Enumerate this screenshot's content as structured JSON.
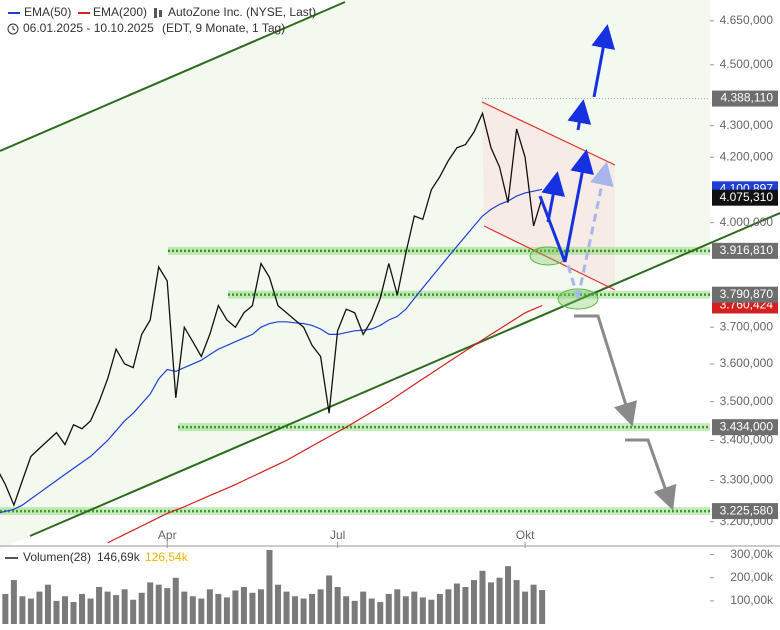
{
  "chart_data": [
    {
      "type": "line",
      "title": "AutoZone Inc. (NYSE, Last)",
      "subtitle": "06.01.2025 - 10.10.2025",
      "period_note": "(EDT, 9 Monate, 1 Tag)",
      "log_scale": true,
      "categories": [
        null,
        null,
        null,
        null,
        null,
        null,
        null,
        null,
        null,
        null,
        null,
        null,
        null,
        null,
        null,
        null,
        null,
        null,
        null,
        null,
        "Apr",
        null,
        null,
        null,
        null,
        null,
        null,
        null,
        null,
        null,
        null,
        null,
        null,
        null,
        null,
        null,
        null,
        null,
        null,
        null,
        "Jul",
        null,
        null,
        null,
        null,
        null,
        null,
        null,
        null,
        null,
        null,
        null,
        null,
        null,
        null,
        null,
        null,
        null,
        null,
        null,
        null,
        null,
        "Okt",
        null,
        null
      ],
      "series": [
        {
          "color": "#111111",
          "values": [
            3330,
            3290,
            3240,
            3300,
            3360,
            3380,
            3400,
            3420,
            3390,
            3440,
            3430,
            3450,
            3500,
            3560,
            3640,
            3600,
            3590,
            3680,
            3720,
            3870,
            3830,
            3510,
            3700,
            3660,
            3620,
            3680,
            3760,
            3720,
            3700,
            3740,
            3760,
            3880,
            3840,
            3760,
            3740,
            3720,
            3700,
            3650,
            3620,
            3470,
            3690,
            3750,
            3740,
            3680,
            3720,
            3780,
            3880,
            3790,
            3910,
            4020,
            4010,
            4100,
            4140,
            4190,
            4230,
            4240,
            4280,
            4340,
            4230,
            4170,
            4060,
            4290,
            4200,
            3990,
            4075.31
          ]
        },
        {
          "name": "EMA(50)",
          "color": "#1f3fd6",
          "values": [
            3220,
            3225,
            3230,
            3240,
            3255,
            3270,
            3285,
            3300,
            3315,
            3330,
            3345,
            3360,
            3380,
            3400,
            3425,
            3450,
            3470,
            3495,
            3520,
            3560,
            3585,
            3580,
            3590,
            3600,
            3610,
            3625,
            3640,
            3650,
            3660,
            3670,
            3680,
            3700,
            3710,
            3715,
            3715,
            3712,
            3710,
            3705,
            3695,
            3680,
            3680,
            3685,
            3690,
            3692,
            3695,
            3705,
            3720,
            3730,
            3750,
            3780,
            3810,
            3840,
            3870,
            3900,
            3930,
            3960,
            3990,
            4020,
            4040,
            4055,
            4065,
            4080,
            4090,
            4095,
            4100.897
          ]
        },
        {
          "name": "EMA(200)",
          "color": "#d42020",
          "values": [
            null,
            null,
            null,
            null,
            null,
            null,
            null,
            null,
            null,
            null,
            null,
            null,
            null,
            3150,
            3160,
            3170,
            3180,
            3190,
            3200,
            3210,
            3220,
            3228,
            3236,
            3245,
            3254,
            3263,
            3272,
            3281,
            3290,
            3300,
            3310,
            3320,
            3330,
            3340,
            3350,
            3362,
            3374,
            3386,
            3398,
            3410,
            3422,
            3434,
            3447,
            3460,
            3473,
            3486,
            3500,
            3515,
            3530,
            3545,
            3560,
            3575,
            3590,
            3605,
            3620,
            3635,
            3650,
            3665,
            3680,
            3695,
            3710,
            3725,
            3740,
            3750,
            3760.424
          ]
        }
      ],
      "ylim": [
        3145,
        4723
      ],
      "yticks": [
        {
          "value": 4650,
          "label": "4.650,000"
        },
        {
          "value": 4500,
          "label": "4.500,000"
        },
        {
          "value": 4300,
          "label": "4.300,000"
        },
        {
          "value": 4200,
          "label": "4.200,000"
        },
        {
          "value": 4000,
          "label": "4.000,000"
        },
        {
          "value": 3700,
          "label": "3.700,000"
        },
        {
          "value": 3600,
          "label": "3.600,000"
        },
        {
          "value": 3500,
          "label": "3.500,000"
        },
        {
          "value": 3400,
          "label": "3.400,000"
        },
        {
          "value": 3300,
          "label": "3.300,000"
        },
        {
          "value": 3200,
          "label": "3.200,000"
        }
      ],
      "price_labels": [
        {
          "value": 4388.11,
          "label": "4.388,110",
          "color": "#6e6e6e"
        },
        {
          "value": 4100.897,
          "label": "4.100,897",
          "color": "#1f3fd6"
        },
        {
          "value": 4075.31,
          "label": "4.075,310",
          "color": "#111111"
        },
        {
          "value": 3916.81,
          "label": "3.916,810",
          "color": "#6e6e6e"
        },
        {
          "value": 3760.424,
          "label": "3.760,424",
          "color": "#d42020"
        },
        {
          "value": 3790.87,
          "label": "3.790,870",
          "color": "#6e6e6e"
        },
        {
          "value": 3434,
          "label": "3.434,000",
          "color": "#6e6e6e"
        },
        {
          "value": 3225.58,
          "label": "3.225,580",
          "color": "#6e6e6e"
        }
      ]
    },
    {
      "type": "bar",
      "title": "Volumen(28)",
      "header_values": [
        "146,69k",
        "126,54k"
      ],
      "color": "#7a7a7a",
      "values": [
        150000,
        130000,
        190000,
        120000,
        110000,
        140000,
        170000,
        100000,
        120000,
        95000,
        130000,
        110000,
        160000,
        140000,
        125000,
        150000,
        105000,
        135000,
        180000,
        170000,
        155000,
        200000,
        140000,
        120000,
        110000,
        150000,
        130000,
        115000,
        145000,
        160000,
        135000,
        150000,
        320000,
        170000,
        140000,
        120000,
        110000,
        130000,
        150000,
        210000,
        160000,
        120000,
        100000,
        140000,
        110000,
        95000,
        130000,
        150000,
        120000,
        140000,
        115000,
        105000,
        130000,
        150000,
        175000,
        160000,
        190000,
        230000,
        180000,
        200000,
        250000,
        190000,
        140000,
        170000,
        146690
      ],
      "ylim": [
        0,
        320000
      ],
      "yticks": [
        {
          "value": 300000,
          "label": "300,00k"
        },
        {
          "value": 200000,
          "label": "200,00k"
        },
        {
          "value": 100000,
          "label": "100,00k"
        }
      ]
    }
  ]
}
